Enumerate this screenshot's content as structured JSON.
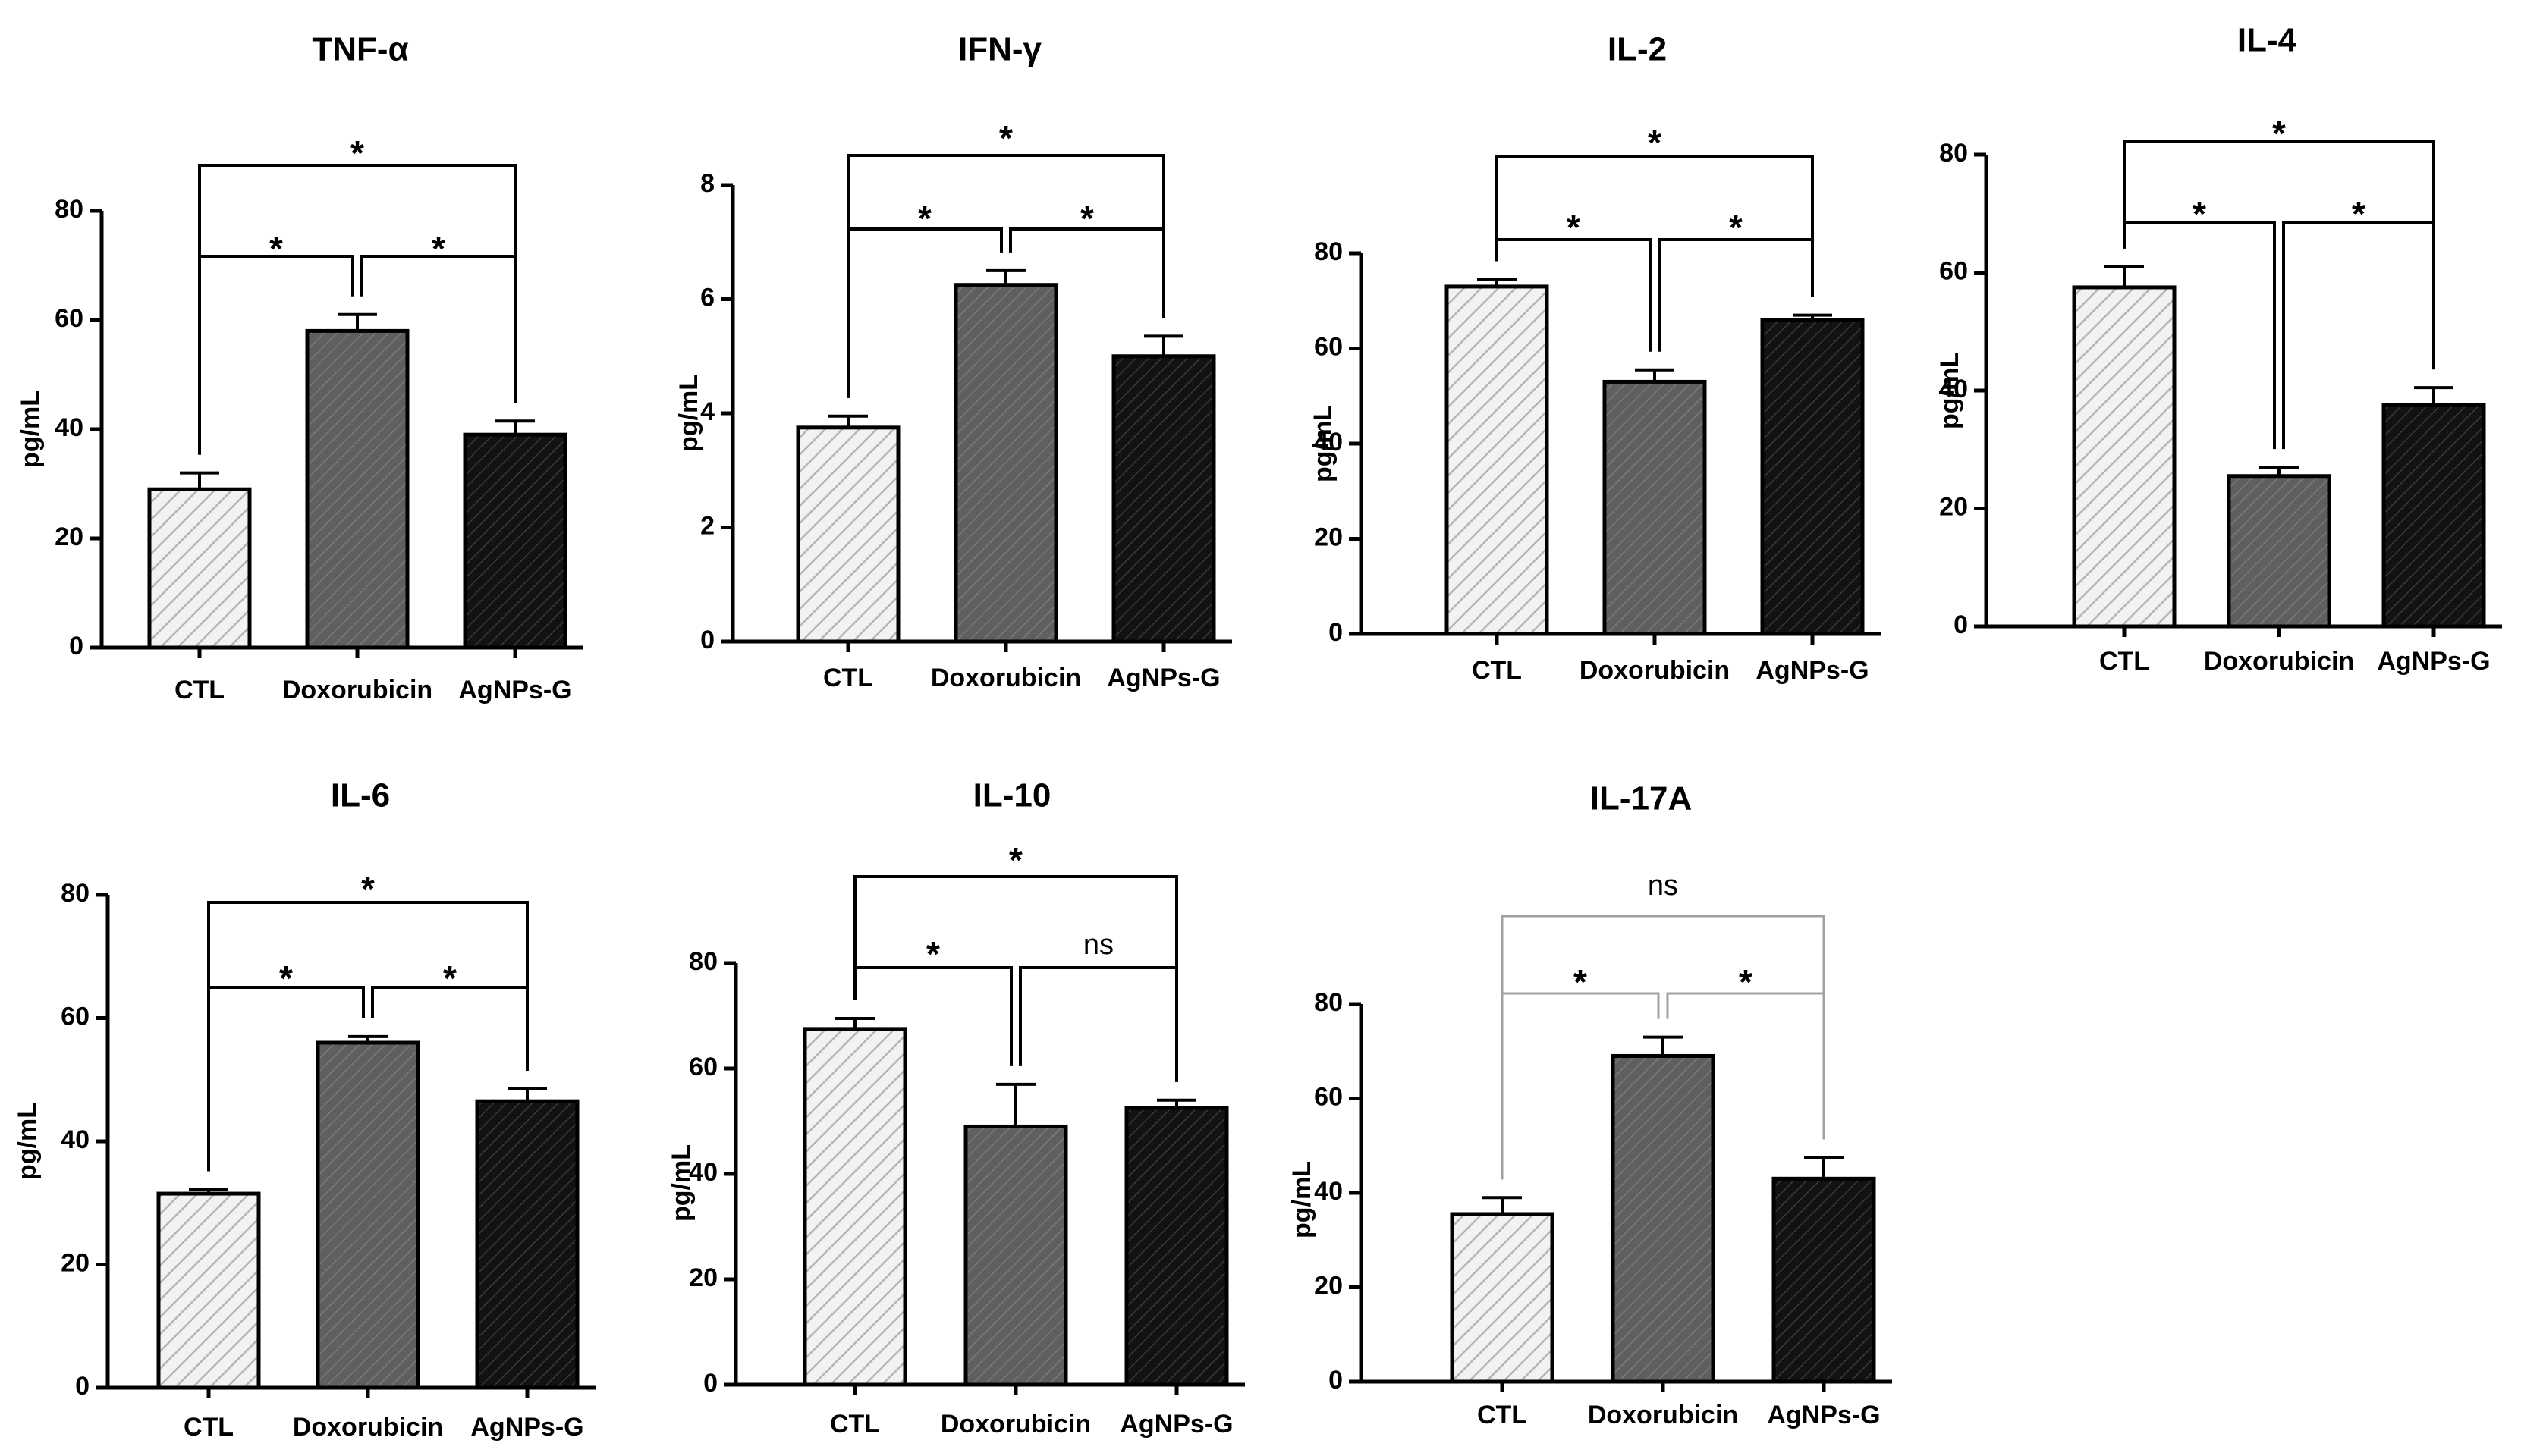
{
  "figure": {
    "groups": [
      "CTL",
      "Doxorubicin",
      "AgNPs-G"
    ],
    "y_unit_label": "pg/mL"
  },
  "chart_data": [
    {
      "type": "bar",
      "title": "TNF-α",
      "categories": [
        "CTL",
        "Doxorubicin",
        "AgNPs-G"
      ],
      "values": [
        29,
        58,
        39
      ],
      "errors": [
        3,
        3,
        2.5
      ],
      "ylabel": "pg/mL",
      "ylim": [
        0,
        80
      ],
      "yticks": [
        0,
        20,
        40,
        60,
        80
      ],
      "significance": [
        {
          "pair": [
            0,
            1
          ],
          "label": "*"
        },
        {
          "pair": [
            1,
            2
          ],
          "label": "*"
        },
        {
          "pair": [
            0,
            2
          ],
          "label": "*"
        }
      ]
    },
    {
      "type": "bar",
      "title": "IFN-γ",
      "categories": [
        "CTL",
        "Doxorubicin",
        "AgNPs-G"
      ],
      "values": [
        3.75,
        6.25,
        5.0
      ],
      "errors": [
        0.2,
        0.25,
        0.35
      ],
      "ylabel": "pg/mL",
      "ylim": [
        0,
        8
      ],
      "yticks": [
        0,
        2,
        4,
        6,
        8
      ],
      "significance": [
        {
          "pair": [
            0,
            1
          ],
          "label": "*"
        },
        {
          "pair": [
            1,
            2
          ],
          "label": "*"
        },
        {
          "pair": [
            0,
            2
          ],
          "label": "*"
        }
      ]
    },
    {
      "type": "bar",
      "title": "IL-2",
      "categories": [
        "CTL",
        "Doxorubicin",
        "AgNPs-G"
      ],
      "values": [
        73,
        53,
        66
      ],
      "errors": [
        1.5,
        2.5,
        1
      ],
      "ylabel": "pg/mL",
      "ylim": [
        0,
        80
      ],
      "yticks": [
        0,
        20,
        40,
        60,
        80
      ],
      "significance": [
        {
          "pair": [
            0,
            1
          ],
          "label": "*"
        },
        {
          "pair": [
            1,
            2
          ],
          "label": "*"
        },
        {
          "pair": [
            0,
            2
          ],
          "label": "*"
        }
      ]
    },
    {
      "type": "bar",
      "title": "IL-4",
      "categories": [
        "CTL",
        "Doxorubicin",
        "AgNPs-G"
      ],
      "values": [
        57.5,
        25.5,
        37.5
      ],
      "errors": [
        3.5,
        1.5,
        3
      ],
      "ylabel": "pg/mL",
      "ylim": [
        0,
        80
      ],
      "yticks": [
        0,
        20,
        40,
        60,
        80
      ],
      "significance": [
        {
          "pair": [
            0,
            1
          ],
          "label": "*"
        },
        {
          "pair": [
            1,
            2
          ],
          "label": "*"
        },
        {
          "pair": [
            0,
            2
          ],
          "label": "*"
        }
      ]
    },
    {
      "type": "bar",
      "title": "IL-6",
      "categories": [
        "CTL",
        "Doxorubicin",
        "AgNPs-G"
      ],
      "values": [
        31.5,
        56,
        46.5
      ],
      "errors": [
        0.7,
        1,
        2
      ],
      "ylabel": "pg/mL",
      "ylim": [
        0,
        80
      ],
      "yticks": [
        0,
        20,
        40,
        60,
        80
      ],
      "significance": [
        {
          "pair": [
            0,
            1
          ],
          "label": "*"
        },
        {
          "pair": [
            1,
            2
          ],
          "label": "*"
        },
        {
          "pair": [
            0,
            2
          ],
          "label": "*"
        }
      ]
    },
    {
      "type": "bar",
      "title": "IL-10",
      "categories": [
        "CTL",
        "Doxorubicin",
        "AgNPs-G"
      ],
      "values": [
        67.5,
        49,
        52.5
      ],
      "errors": [
        2,
        8,
        1.5
      ],
      "ylabel": "pg/mL",
      "ylim": [
        0,
        80
      ],
      "yticks": [
        0,
        20,
        40,
        60,
        80
      ],
      "significance": [
        {
          "pair": [
            0,
            1
          ],
          "label": "*"
        },
        {
          "pair": [
            1,
            2
          ],
          "label": "ns"
        },
        {
          "pair": [
            0,
            2
          ],
          "label": "*"
        }
      ]
    },
    {
      "type": "bar",
      "title": "IL-17A",
      "categories": [
        "CTL",
        "Doxorubicin",
        "AgNPs-G"
      ],
      "values": [
        35.5,
        69,
        43
      ],
      "errors": [
        3.5,
        4,
        4.5
      ],
      "ylabel": "pg/mL",
      "ylim": [
        0,
        80
      ],
      "yticks": [
        0,
        20,
        40,
        60,
        80
      ],
      "significance": [
        {
          "pair": [
            0,
            1
          ],
          "label": "*"
        },
        {
          "pair": [
            1,
            2
          ],
          "label": "*"
        },
        {
          "pair": [
            0,
            2
          ],
          "label": "ns"
        }
      ]
    }
  ],
  "colors": {
    "ctl_fill": "#f2f2f2",
    "ctl_hatch": "#b5b5b5",
    "doxorubicin_fill": "#5f5f5f",
    "doxorubicin_hatch": "#7a7a7a",
    "agnps_fill": "#121212",
    "agnps_hatch": "#3a3a3a",
    "bracket_black": "#000000",
    "bracket_gray": "#a0a0a0"
  }
}
